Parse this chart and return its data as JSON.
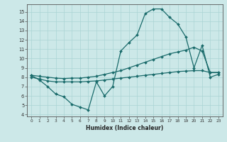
{
  "xlabel": "Humidex (Indice chaleur)",
  "bg_color": "#cce8e8",
  "line_color": "#1a6b6b",
  "grid_color": "#aad4d4",
  "xlim": [
    -0.5,
    23.5
  ],
  "ylim": [
    3.8,
    15.8
  ],
  "yticks": [
    4,
    5,
    6,
    7,
    8,
    9,
    10,
    11,
    12,
    13,
    14,
    15
  ],
  "xticks": [
    0,
    1,
    2,
    3,
    4,
    5,
    6,
    7,
    8,
    9,
    10,
    11,
    12,
    13,
    14,
    15,
    16,
    17,
    18,
    19,
    20,
    21,
    22,
    23
  ],
  "line1_x": [
    0,
    1,
    2,
    3,
    4,
    5,
    6,
    7,
    8,
    9,
    10,
    11,
    12,
    13,
    14,
    15,
    16,
    17,
    18,
    19,
    20,
    21,
    22,
    23
  ],
  "line1_y": [
    8.2,
    7.7,
    7.0,
    6.2,
    5.9,
    5.1,
    4.8,
    4.5,
    7.5,
    6.0,
    7.0,
    10.8,
    11.7,
    12.5,
    14.8,
    15.3,
    15.3,
    14.4,
    13.7,
    12.3,
    9.0,
    11.4,
    8.0,
    8.3
  ],
  "line2_x": [
    0,
    1,
    2,
    3,
    4,
    5,
    6,
    7,
    8,
    9,
    10,
    11,
    12,
    13,
    14,
    15,
    16,
    17,
    18,
    19,
    20,
    21,
    22,
    23
  ],
  "line2_y": [
    8.2,
    8.1,
    8.0,
    7.9,
    7.85,
    7.9,
    7.9,
    8.0,
    8.1,
    8.3,
    8.5,
    8.7,
    9.0,
    9.3,
    9.6,
    9.9,
    10.2,
    10.5,
    10.7,
    10.9,
    11.2,
    10.8,
    8.5,
    8.5
  ],
  "line3_x": [
    0,
    1,
    2,
    3,
    4,
    5,
    6,
    7,
    8,
    9,
    10,
    11,
    12,
    13,
    14,
    15,
    16,
    17,
    18,
    19,
    20,
    21,
    22,
    23
  ],
  "line3_y": [
    8.0,
    7.8,
    7.6,
    7.5,
    7.5,
    7.5,
    7.5,
    7.55,
    7.6,
    7.7,
    7.8,
    7.9,
    8.0,
    8.1,
    8.2,
    8.3,
    8.4,
    8.5,
    8.6,
    8.65,
    8.7,
    8.7,
    8.5,
    8.5
  ]
}
